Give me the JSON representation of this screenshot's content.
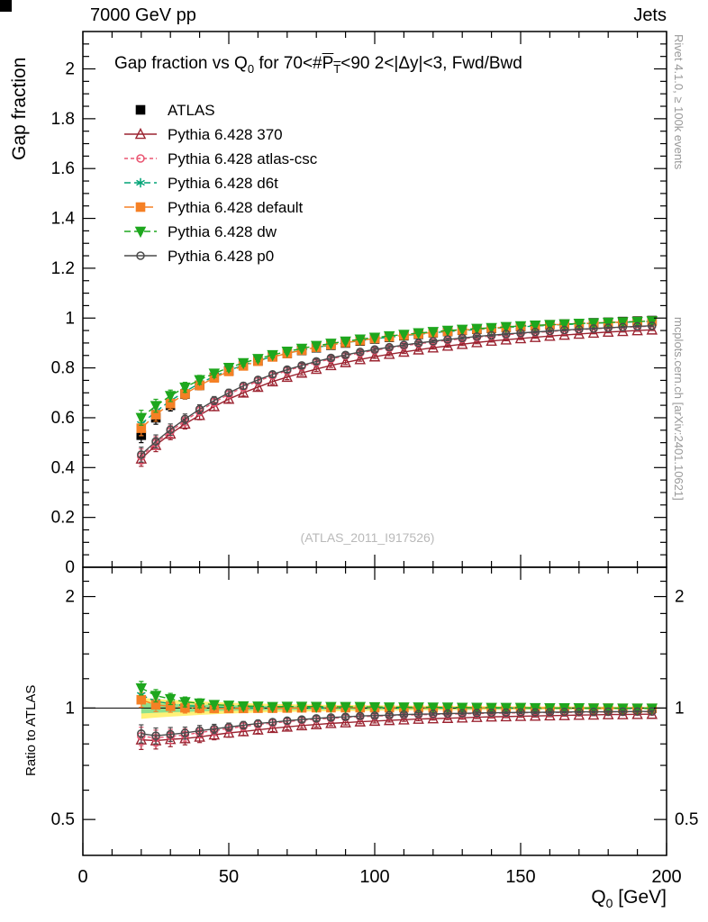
{
  "header": {
    "left": "7000 GeV pp",
    "right": "Jets"
  },
  "side_notes": {
    "top_right": "Rivet 4.1.0, ≥ 100k events",
    "bottom_right": "mcplots.cern.ch [arXiv:2401.10621]"
  },
  "watermark": "(ATLAS_2011_I917526)",
  "title_parts": {
    "p1": "Gap fraction vs Q",
    "p1_sub": "0",
    "p2": " for 70<#",
    "p_bar": "P",
    "p_bar_sub": "T",
    "p3": "<90  2<|Δy|<3, Fwd/Bwd"
  },
  "axes": {
    "y_main_label": "Gap fraction",
    "y_ratio_label": "Ratio to ATLAS",
    "x_label": {
      "main": "Q",
      "sub": "0",
      "rest": " [GeV]"
    },
    "x_range": [
      0,
      200
    ],
    "x_ticks": [
      0,
      50,
      100,
      150,
      200
    ],
    "x_minor_step": 10,
    "y_main_range": [
      0,
      2.15
    ],
    "y_main_ticks": [
      0,
      0.2,
      0.4,
      0.6,
      0.8,
      1,
      1.2,
      1.4,
      1.6,
      1.8,
      2
    ],
    "y_main_minor_step": 0.05,
    "y_ratio_range": [
      0.4,
      2.4
    ],
    "y_ratio_log": true,
    "y_ratio_ticks": [
      0.5,
      1,
      2
    ],
    "y_ratio_minor": [
      0.6,
      0.7,
      0.8,
      0.9,
      1.2,
      1.4,
      1.6,
      1.8,
      2.2
    ]
  },
  "chart_data": {
    "type": "line",
    "title": "Gap fraction vs Q0 for 70<#PT<90  2<|Δy|<3, Fwd/Bwd",
    "xlabel": "Q0 [GeV]",
    "ylabel": "Gap fraction",
    "ratio_ylabel": "Ratio to ATLAS",
    "x": [
      20,
      25,
      30,
      35,
      40,
      45,
      50,
      55,
      60,
      65,
      70,
      75,
      80,
      85,
      90,
      95,
      100,
      105,
      110,
      115,
      120,
      125,
      130,
      135,
      140,
      145,
      150,
      155,
      160,
      165,
      170,
      175,
      180,
      185,
      190,
      195
    ],
    "point_err": [
      0.03,
      0.026,
      0.023,
      0.02,
      0.018,
      0.016,
      0.014,
      0.013,
      0.012,
      0.011,
      0.01,
      0.009,
      0.009,
      0.008,
      0.008,
      0.007,
      0.007,
      0.006,
      0.006,
      0.006,
      0.005,
      0.005,
      0.005,
      0.005,
      0.004,
      0.004,
      0.004,
      0.004,
      0.004,
      0.003,
      0.003,
      0.003,
      0.003,
      0.003,
      0.003,
      0.003
    ],
    "series": [
      {
        "name": "ATLAS",
        "color": "#000000",
        "marker": "square",
        "filled": true,
        "line": "none",
        "values": [
          0.53,
          0.6,
          0.65,
          0.695,
          0.73,
          0.762,
          0.788,
          0.81,
          0.828,
          0.845,
          0.858,
          0.87,
          0.881,
          0.891,
          0.9,
          0.908,
          0.916,
          0.923,
          0.929,
          0.935,
          0.941,
          0.946,
          0.951,
          0.955,
          0.959,
          0.963,
          0.966,
          0.97,
          0.973,
          0.976,
          0.978,
          0.981,
          0.983,
          0.986,
          0.988,
          0.99
        ]
      },
      {
        "name": "Pythia 6.428 370",
        "color": "#9b2330",
        "marker": "triangle-up",
        "filled": false,
        "line": "solid",
        "values": [
          0.435,
          0.49,
          0.535,
          0.575,
          0.61,
          0.645,
          0.675,
          0.7,
          0.723,
          0.745,
          0.763,
          0.78,
          0.795,
          0.81,
          0.822,
          0.834,
          0.845,
          0.855,
          0.864,
          0.873,
          0.881,
          0.888,
          0.895,
          0.902,
          0.908,
          0.913,
          0.918,
          0.923,
          0.928,
          0.932,
          0.936,
          0.94,
          0.944,
          0.947,
          0.95,
          0.953
        ]
      },
      {
        "name": "Pythia 6.428 atlas-csc",
        "color": "#ea5672",
        "marker": "circle",
        "filled": false,
        "line": "finedash",
        "values": [
          0.445,
          0.498,
          0.545,
          0.588,
          0.627,
          0.662,
          0.694,
          0.722,
          0.747,
          0.769,
          0.789,
          0.806,
          0.822,
          0.836,
          0.849,
          0.86,
          0.871,
          0.88,
          0.889,
          0.897,
          0.904,
          0.911,
          0.917,
          0.923,
          0.928,
          0.933,
          0.938,
          0.942,
          0.946,
          0.95,
          0.953,
          0.957,
          0.96,
          0.963,
          0.965,
          0.968
        ]
      },
      {
        "name": "Pythia 6.428 d6t",
        "color": "#00a376",
        "marker": "asterisk",
        "filled": false,
        "line": "dashed",
        "values": [
          0.575,
          0.625,
          0.668,
          0.705,
          0.738,
          0.766,
          0.79,
          0.811,
          0.829,
          0.845,
          0.859,
          0.871,
          0.882,
          0.892,
          0.901,
          0.909,
          0.917,
          0.923,
          0.93,
          0.935,
          0.941,
          0.946,
          0.95,
          0.954,
          0.958,
          0.962,
          0.965,
          0.968,
          0.971,
          0.974,
          0.976,
          0.979,
          0.981,
          0.983,
          0.985,
          0.987
        ]
      },
      {
        "name": "Pythia 6.428 default",
        "color": "#f58025",
        "marker": "square",
        "filled": true,
        "line": "dashdot",
        "values": [
          0.558,
          0.612,
          0.657,
          0.696,
          0.73,
          0.76,
          0.786,
          0.808,
          0.827,
          0.844,
          0.858,
          0.871,
          0.883,
          0.893,
          0.902,
          0.91,
          0.918,
          0.925,
          0.931,
          0.937,
          0.942,
          0.947,
          0.952,
          0.956,
          0.96,
          0.963,
          0.967,
          0.97,
          0.973,
          0.975,
          0.978,
          0.98,
          0.982,
          0.984,
          0.986,
          0.988
        ]
      },
      {
        "name": "Pythia 6.428 dw",
        "color": "#1ea71e",
        "marker": "triangle-down",
        "filled": true,
        "line": "dashed",
        "values": [
          0.6,
          0.648,
          0.688,
          0.722,
          0.752,
          0.778,
          0.801,
          0.82,
          0.837,
          0.852,
          0.866,
          0.878,
          0.889,
          0.898,
          0.907,
          0.915,
          0.922,
          0.928,
          0.934,
          0.94,
          0.945,
          0.95,
          0.954,
          0.958,
          0.961,
          0.965,
          0.968,
          0.971,
          0.973,
          0.976,
          0.978,
          0.98,
          0.982,
          0.984,
          0.986,
          0.988
        ]
      },
      {
        "name": "Pythia 6.428 p0",
        "color": "#4a4a4a",
        "marker": "circle",
        "filled": false,
        "line": "solid",
        "values": [
          0.452,
          0.505,
          0.552,
          0.595,
          0.634,
          0.669,
          0.7,
          0.728,
          0.752,
          0.774,
          0.793,
          0.81,
          0.826,
          0.84,
          0.852,
          0.864,
          0.874,
          0.883,
          0.892,
          0.9,
          0.907,
          0.914,
          0.92,
          0.926,
          0.931,
          0.936,
          0.94,
          0.944,
          0.948,
          0.952,
          0.955,
          0.958,
          0.961,
          0.964,
          0.967,
          0.969
        ]
      }
    ],
    "ratio_band": {
      "yellow": "#fff176",
      "green": "#8de08d",
      "yellow_halfwidth": [
        0.065,
        0.058,
        0.052,
        0.047,
        0.042,
        0.038,
        0.034,
        0.031,
        0.028,
        0.026,
        0.024,
        0.022,
        0.021,
        0.02,
        0.019,
        0.018,
        0.017,
        0.016,
        0.015,
        0.015,
        0.014,
        0.013,
        0.013,
        0.012,
        0.012,
        0.011,
        0.011,
        0.01,
        0.01,
        0.01,
        0.009,
        0.009,
        0.009,
        0.008,
        0.008,
        0.008
      ],
      "green_halfwidth": [
        0.033,
        0.029,
        0.026,
        0.024,
        0.021,
        0.019,
        0.017,
        0.016,
        0.014,
        0.013,
        0.012,
        0.011,
        0.011,
        0.01,
        0.01,
        0.009,
        0.009,
        0.008,
        0.008,
        0.008,
        0.007,
        0.007,
        0.007,
        0.006,
        0.006,
        0.006,
        0.006,
        0.005,
        0.005,
        0.005,
        0.005,
        0.005,
        0.005,
        0.004,
        0.004,
        0.004
      ]
    },
    "legend_position": "top-left",
    "grid": false
  }
}
